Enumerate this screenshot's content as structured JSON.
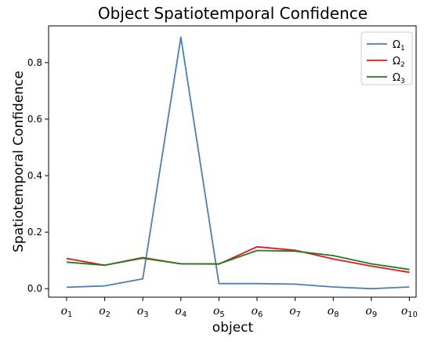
{
  "chart_data": {
    "type": "line",
    "title": "Object Spatiotemporal Confidence",
    "xlabel": "object",
    "ylabel": "Spatiotemporal Confidence",
    "categories": [
      "o1",
      "o2",
      "o3",
      "o4",
      "o5",
      "o6",
      "o7",
      "o8",
      "o9",
      "o10"
    ],
    "category_labels": [
      {
        "base": "o",
        "sub": "1"
      },
      {
        "base": "o",
        "sub": "2"
      },
      {
        "base": "o",
        "sub": "3"
      },
      {
        "base": "o",
        "sub": "4"
      },
      {
        "base": "o",
        "sub": "5"
      },
      {
        "base": "o",
        "sub": "6"
      },
      {
        "base": "o",
        "sub": "7"
      },
      {
        "base": "o",
        "sub": "8"
      },
      {
        "base": "o",
        "sub": "9"
      },
      {
        "base": "o",
        "sub": "10"
      }
    ],
    "ylim": [
      -0.03,
      0.93
    ],
    "yticks": [
      0.0,
      0.2,
      0.4,
      0.6,
      0.8
    ],
    "ytick_labels": [
      "0.0",
      "0.2",
      "0.4",
      "0.6",
      "0.8"
    ],
    "grid": false,
    "legend_position": "top-right",
    "series": [
      {
        "name": "Ω",
        "name_sub": "1",
        "color": "#4a7fb5",
        "values": [
          0.005,
          0.01,
          0.035,
          0.89,
          0.018,
          0.018,
          0.016,
          0.006,
          0.0,
          0.006
        ]
      },
      {
        "name": "Ω",
        "name_sub": "2",
        "color": "#e8141b",
        "values": [
          0.107,
          0.083,
          0.11,
          0.088,
          0.087,
          0.148,
          0.136,
          0.105,
          0.08,
          0.058
        ]
      },
      {
        "name": "Ω",
        "name_sub": "3",
        "color": "#1e7d1e",
        "values": [
          0.094,
          0.083,
          0.108,
          0.088,
          0.088,
          0.135,
          0.133,
          0.117,
          0.088,
          0.068
        ]
      }
    ]
  }
}
